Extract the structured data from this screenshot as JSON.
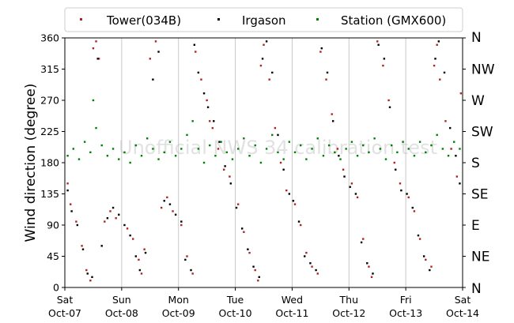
{
  "chart_data": {
    "type": "scatter",
    "ylabel": "Wind direction (degree)",
    "watermark": "Unofficial NWS 34 calibration test",
    "ylim": [
      0,
      360
    ],
    "yticks": [
      0,
      45,
      90,
      135,
      180,
      225,
      270,
      315,
      360
    ],
    "right_axis_labels": [
      "N",
      "NE",
      "E",
      "SE",
      "S",
      "SW",
      "W",
      "NW",
      "N"
    ],
    "grid": "vertical at day boundaries",
    "legend_position": "top",
    "x_tick_labels": [
      {
        "day": "Sat",
        "date": "Oct-07"
      },
      {
        "day": "Sun",
        "date": "Oct-08"
      },
      {
        "day": "Mon",
        "date": "Oct-09"
      },
      {
        "day": "Tue",
        "date": "Oct-10"
      },
      {
        "day": "Wed",
        "date": "Oct-11"
      },
      {
        "day": "Thu",
        "date": "Oct-12"
      },
      {
        "day": "Fri",
        "date": "Oct-13"
      },
      {
        "day": "Sat",
        "date": "Oct-14"
      }
    ],
    "series": [
      {
        "name": "Tower(034B)",
        "color": "#b22222",
        "points": [
          [
            0.05,
            150
          ],
          [
            0.1,
            120
          ],
          [
            0.2,
            95
          ],
          [
            0.3,
            60
          ],
          [
            0.38,
            25
          ],
          [
            0.45,
            10
          ],
          [
            0.5,
            345
          ],
          [
            0.55,
            355
          ],
          [
            0.6,
            330
          ],
          [
            0.7,
            95
          ],
          [
            0.8,
            110
          ],
          [
            0.9,
            100
          ],
          [
            1.1,
            85
          ],
          [
            1.2,
            70
          ],
          [
            1.3,
            40
          ],
          [
            1.35,
            20
          ],
          [
            1.4,
            55
          ],
          [
            1.5,
            330
          ],
          [
            1.6,
            355
          ],
          [
            1.7,
            115
          ],
          [
            1.8,
            130
          ],
          [
            1.9,
            110
          ],
          [
            2.05,
            90
          ],
          [
            2.15,
            45
          ],
          [
            2.25,
            20
          ],
          [
            2.3,
            340
          ],
          [
            2.4,
            300
          ],
          [
            2.5,
            270
          ],
          [
            2.55,
            240
          ],
          [
            2.6,
            230
          ],
          [
            2.7,
            200
          ],
          [
            2.8,
            170
          ],
          [
            2.9,
            160
          ],
          [
            3.05,
            120
          ],
          [
            3.15,
            80
          ],
          [
            3.25,
            50
          ],
          [
            3.35,
            25
          ],
          [
            3.4,
            10
          ],
          [
            3.45,
            320
          ],
          [
            3.5,
            350
          ],
          [
            3.6,
            300
          ],
          [
            3.7,
            230
          ],
          [
            3.8,
            180
          ],
          [
            3.9,
            140
          ],
          [
            4.05,
            120
          ],
          [
            4.15,
            90
          ],
          [
            4.25,
            50
          ],
          [
            4.35,
            30
          ],
          [
            4.45,
            20
          ],
          [
            4.5,
            340
          ],
          [
            4.6,
            300
          ],
          [
            4.7,
            250
          ],
          [
            4.8,
            200
          ],
          [
            4.9,
            170
          ],
          [
            5.05,
            150
          ],
          [
            5.15,
            130
          ],
          [
            5.25,
            70
          ],
          [
            5.35,
            30
          ],
          [
            5.4,
            15
          ],
          [
            5.5,
            355
          ],
          [
            5.6,
            320
          ],
          [
            5.7,
            270
          ],
          [
            5.8,
            180
          ],
          [
            5.9,
            150
          ],
          [
            6.05,
            130
          ],
          [
            6.15,
            110
          ],
          [
            6.25,
            70
          ],
          [
            6.35,
            40
          ],
          [
            6.45,
            30
          ],
          [
            6.5,
            320
          ],
          [
            6.55,
            350
          ],
          [
            6.6,
            300
          ],
          [
            6.7,
            240
          ],
          [
            6.8,
            200
          ],
          [
            6.9,
            160
          ],
          [
            6.97,
            280
          ]
        ]
      },
      {
        "name": "Irgason",
        "color": "#000000",
        "points": [
          [
            0.05,
            140
          ],
          [
            0.12,
            110
          ],
          [
            0.22,
            90
          ],
          [
            0.32,
            55
          ],
          [
            0.4,
            20
          ],
          [
            0.48,
            15
          ],
          [
            0.58,
            330
          ],
          [
            0.65,
            60
          ],
          [
            0.75,
            100
          ],
          [
            0.85,
            115
          ],
          [
            0.95,
            105
          ],
          [
            1.05,
            90
          ],
          [
            1.15,
            75
          ],
          [
            1.25,
            45
          ],
          [
            1.32,
            25
          ],
          [
            1.42,
            50
          ],
          [
            1.55,
            300
          ],
          [
            1.65,
            340
          ],
          [
            1.75,
            125
          ],
          [
            1.85,
            120
          ],
          [
            1.95,
            105
          ],
          [
            2.05,
            95
          ],
          [
            2.12,
            40
          ],
          [
            2.22,
            25
          ],
          [
            2.28,
            350
          ],
          [
            2.35,
            310
          ],
          [
            2.45,
            280
          ],
          [
            2.52,
            260
          ],
          [
            2.62,
            240
          ],
          [
            2.72,
            210
          ],
          [
            2.82,
            175
          ],
          [
            2.92,
            150
          ],
          [
            3.02,
            115
          ],
          [
            3.12,
            85
          ],
          [
            3.22,
            55
          ],
          [
            3.32,
            30
          ],
          [
            3.42,
            15
          ],
          [
            3.48,
            330
          ],
          [
            3.55,
            355
          ],
          [
            3.65,
            310
          ],
          [
            3.75,
            220
          ],
          [
            3.85,
            170
          ],
          [
            3.95,
            135
          ],
          [
            4.02,
            125
          ],
          [
            4.12,
            95
          ],
          [
            4.22,
            45
          ],
          [
            4.32,
            35
          ],
          [
            4.42,
            25
          ],
          [
            4.52,
            345
          ],
          [
            4.62,
            310
          ],
          [
            4.72,
            240
          ],
          [
            4.82,
            190
          ],
          [
            4.92,
            160
          ],
          [
            5.02,
            145
          ],
          [
            5.12,
            135
          ],
          [
            5.22,
            65
          ],
          [
            5.32,
            35
          ],
          [
            5.42,
            20
          ],
          [
            5.52,
            350
          ],
          [
            5.62,
            330
          ],
          [
            5.72,
            260
          ],
          [
            5.82,
            170
          ],
          [
            5.92,
            140
          ],
          [
            6.02,
            135
          ],
          [
            6.12,
            115
          ],
          [
            6.22,
            75
          ],
          [
            6.32,
            45
          ],
          [
            6.42,
            25
          ],
          [
            6.52,
            330
          ],
          [
            6.58,
            355
          ],
          [
            6.68,
            310
          ],
          [
            6.78,
            230
          ],
          [
            6.88,
            190
          ],
          [
            6.95,
            150
          ]
        ]
      },
      {
        "name": "Station (GMX600)",
        "color": "#008000",
        "points": [
          [
            0.05,
            190
          ],
          [
            0.15,
            200
          ],
          [
            0.25,
            185
          ],
          [
            0.35,
            210
          ],
          [
            0.45,
            195
          ],
          [
            0.5,
            270
          ],
          [
            0.55,
            230
          ],
          [
            0.65,
            205
          ],
          [
            0.75,
            190
          ],
          [
            0.85,
            200
          ],
          [
            0.95,
            185
          ],
          [
            1.05,
            195
          ],
          [
            1.15,
            180
          ],
          [
            1.25,
            205
          ],
          [
            1.35,
            190
          ],
          [
            1.45,
            215
          ],
          [
            1.55,
            200
          ],
          [
            1.65,
            185
          ],
          [
            1.75,
            195
          ],
          [
            1.85,
            210
          ],
          [
            1.95,
            190
          ],
          [
            2.05,
            200
          ],
          [
            2.15,
            220
          ],
          [
            2.25,
            240
          ],
          [
            2.35,
            200
          ],
          [
            2.45,
            180
          ],
          [
            2.55,
            205
          ],
          [
            2.65,
            190
          ],
          [
            2.75,
            210
          ],
          [
            2.85,
            195
          ],
          [
            2.95,
            185
          ],
          [
            3.05,
            200
          ],
          [
            3.15,
            215
          ],
          [
            3.25,
            190
          ],
          [
            3.35,
            205
          ],
          [
            3.45,
            180
          ],
          [
            3.55,
            200
          ],
          [
            3.65,
            220
          ],
          [
            3.75,
            195
          ],
          [
            3.85,
            185
          ],
          [
            3.95,
            210
          ],
          [
            4.05,
            195
          ],
          [
            4.15,
            205
          ],
          [
            4.25,
            185
          ],
          [
            4.35,
            200
          ],
          [
            4.45,
            215
          ],
          [
            4.55,
            190
          ],
          [
            4.65,
            205
          ],
          [
            4.75,
            195
          ],
          [
            4.85,
            185
          ],
          [
            4.95,
            200
          ],
          [
            5.05,
            210
          ],
          [
            5.15,
            190
          ],
          [
            5.25,
            205
          ],
          [
            5.35,
            195
          ],
          [
            5.45,
            215
          ],
          [
            5.55,
            200
          ],
          [
            5.65,
            185
          ],
          [
            5.75,
            205
          ],
          [
            5.85,
            195
          ],
          [
            5.95,
            210
          ],
          [
            6.05,
            200
          ],
          [
            6.15,
            190
          ],
          [
            6.25,
            210
          ],
          [
            6.35,
            195
          ],
          [
            6.45,
            205
          ],
          [
            6.55,
            220
          ],
          [
            6.65,
            200
          ],
          [
            6.75,
            190
          ],
          [
            6.85,
            210
          ],
          [
            6.95,
            200
          ]
        ]
      }
    ]
  }
}
